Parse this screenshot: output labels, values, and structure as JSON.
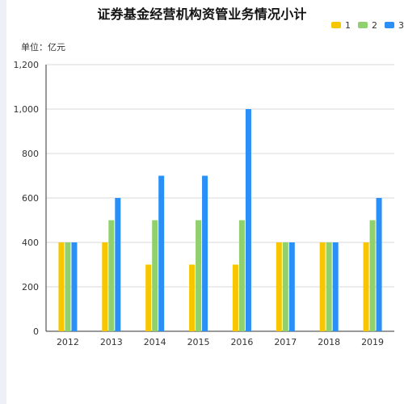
{
  "chart_data": {
    "type": "bar",
    "title": "证券基金经营机构资管业务情况小计",
    "unit_label": "单位：亿元",
    "categories": [
      "2012",
      "2013",
      "2014",
      "2015",
      "2016",
      "2017",
      "2018",
      "2019"
    ],
    "series": [
      {
        "name": "1",
        "color": "#f7c600",
        "values": [
          400,
          400,
          300,
          300,
          300,
          400,
          400,
          400
        ]
      },
      {
        "name": "2",
        "color": "#91d16d",
        "values": [
          400,
          500,
          500,
          500,
          500,
          400,
          400,
          500
        ]
      },
      {
        "name": "3",
        "color": "#2a8ff7",
        "values": [
          400,
          600,
          700,
          700,
          1000,
          400,
          400,
          600
        ]
      }
    ],
    "ylim": [
      0,
      1200
    ],
    "yticks": [
      0,
      200,
      400,
      600,
      800,
      1000,
      1200
    ],
    "ytick_labels": [
      "0",
      "200",
      "400",
      "600",
      "800",
      "1,000",
      "1,200"
    ],
    "grid": true,
    "legend_position": "top-right"
  }
}
